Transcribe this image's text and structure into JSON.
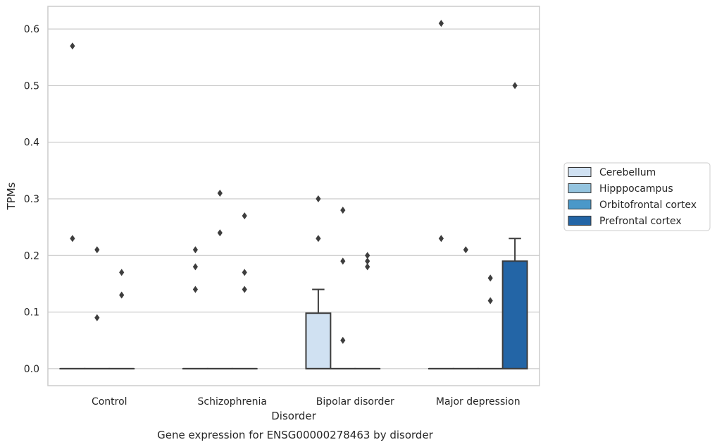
{
  "chart_data": {
    "type": "box",
    "title": "Gene expression for ENSG00000278463 by disorder",
    "xlabel": "Disorder",
    "ylabel": "TPMs",
    "categories": [
      "Control",
      "Schizophrenia",
      "Bipolar disorder",
      "Major depression"
    ],
    "ylim": [
      -0.03,
      0.64
    ],
    "yticks": [
      0.0,
      0.1,
      0.2,
      0.3,
      0.4,
      0.5,
      0.6
    ],
    "ytick_labels": [
      "0.0",
      "0.1",
      "0.2",
      "0.3",
      "0.4",
      "0.5",
      "0.6"
    ],
    "grid": "horizontal",
    "legend_position": "right",
    "series": [
      {
        "name": "Cerebellum",
        "color": "#d0e1f2",
        "boxes": [
          {
            "q1": 0,
            "median": 0,
            "q3": 0,
            "whisker_low": 0,
            "whisker_high": 0,
            "outliers": [
              0.57,
              0.23
            ]
          },
          {
            "q1": 0,
            "median": 0,
            "q3": 0,
            "whisker_low": 0,
            "whisker_high": 0,
            "outliers": [
              0.21,
              0.18,
              0.14
            ]
          },
          {
            "q1": 0,
            "median": 0,
            "q3": 0.098,
            "whisker_low": 0,
            "whisker_high": 0.14,
            "outliers": [
              0.3,
              0.23
            ]
          },
          {
            "q1": 0,
            "median": 0,
            "q3": 0,
            "whisker_low": 0,
            "whisker_high": 0,
            "outliers": [
              0.61,
              0.23
            ]
          }
        ]
      },
      {
        "name": "Hipppocampus",
        "color": "#94c4df",
        "boxes": [
          {
            "q1": 0,
            "median": 0,
            "q3": 0,
            "whisker_low": 0,
            "whisker_high": 0,
            "outliers": [
              0.21,
              0.09
            ]
          },
          {
            "q1": 0,
            "median": 0,
            "q3": 0,
            "whisker_low": 0,
            "whisker_high": 0,
            "outliers": [
              0.31,
              0.24
            ]
          },
          {
            "q1": 0,
            "median": 0,
            "q3": 0,
            "whisker_low": 0,
            "whisker_high": 0,
            "outliers": [
              0.28,
              0.19,
              0.05
            ]
          },
          {
            "q1": 0,
            "median": 0,
            "q3": 0,
            "whisker_low": 0,
            "whisker_high": 0,
            "outliers": [
              0.21
            ]
          }
        ]
      },
      {
        "name": "Orbitofrontal cortex",
        "color": "#4a98c9",
        "boxes": [
          {
            "q1": 0,
            "median": 0,
            "q3": 0,
            "whisker_low": 0,
            "whisker_high": 0,
            "outliers": [
              0.17,
              0.13
            ]
          },
          {
            "q1": 0,
            "median": 0,
            "q3": 0,
            "whisker_low": 0,
            "whisker_high": 0,
            "outliers": [
              0.27,
              0.17,
              0.14
            ]
          },
          {
            "q1": 0,
            "median": 0,
            "q3": 0,
            "whisker_low": 0,
            "whisker_high": 0,
            "outliers": [
              0.2,
              0.19,
              0.18
            ]
          },
          {
            "q1": 0,
            "median": 0,
            "q3": 0,
            "whisker_low": 0,
            "whisker_high": 0,
            "outliers": [
              0.16,
              0.12
            ]
          }
        ]
      },
      {
        "name": "Prefrontal cortex",
        "color": "#2365a6",
        "boxes": [
          null,
          null,
          null,
          {
            "q1": 0,
            "median": 0,
            "q3": 0.19,
            "whisker_low": 0,
            "whisker_high": 0.23,
            "outliers": [
              0.5
            ]
          }
        ]
      }
    ]
  }
}
